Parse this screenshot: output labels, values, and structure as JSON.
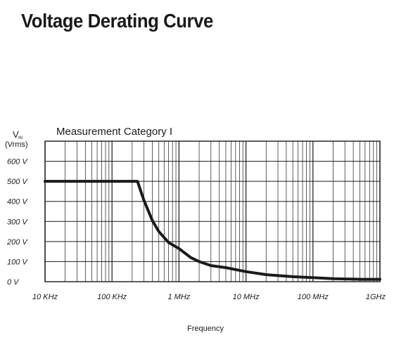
{
  "page": {
    "title": "Voltage Derating Curve"
  },
  "chart_data": {
    "type": "line",
    "subtitle": "Measurement Category I",
    "ylabel_main": "V",
    "ylabel_sub": "IN",
    "ylabel_unit": "(Vrms)",
    "xlabel": "Frequency",
    "x_scale": "log",
    "xlim": [
      10000,
      1000000000
    ],
    "ylim": [
      0,
      700
    ],
    "grid": true,
    "x_ticks": [
      {
        "value": 10000,
        "label": "10 KHz"
      },
      {
        "value": 100000,
        "label": "100 KHz"
      },
      {
        "value": 1000000,
        "label": "1 MHz"
      },
      {
        "value": 10000000,
        "label": "10 MHz"
      },
      {
        "value": 100000000,
        "label": "100 MHz"
      },
      {
        "value": 1000000000,
        "label": "1GHz"
      }
    ],
    "y_ticks": [
      {
        "value": 0,
        "label": "0 V"
      },
      {
        "value": 100,
        "label": "100 V"
      },
      {
        "value": 200,
        "label": "200 V"
      },
      {
        "value": 300,
        "label": "300 V"
      },
      {
        "value": 400,
        "label": "400 V"
      },
      {
        "value": 500,
        "label": "500 V"
      },
      {
        "value": 600,
        "label": "600 V"
      }
    ],
    "series": [
      {
        "x": [
          10000,
          100000,
          240000,
          300000,
          400000,
          500000,
          700000,
          1000000,
          1500000,
          2000000,
          3000000,
          5000000,
          10000000,
          20000000,
          50000000,
          100000000,
          200000000,
          500000000,
          1000000000
        ],
        "y": [
          500,
          500,
          500,
          405,
          305,
          250,
          195,
          165,
          120,
          100,
          80,
          70,
          50,
          35,
          25,
          20,
          15,
          12,
          12
        ]
      }
    ],
    "colors": {
      "line": "#1a1a1a",
      "grid": "#1a1a1a"
    }
  }
}
